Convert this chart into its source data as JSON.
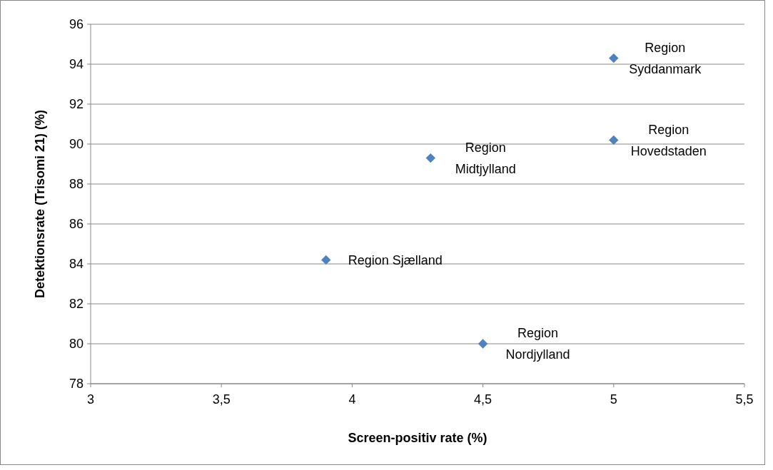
{
  "chart_data": {
    "type": "scatter",
    "xlabel": "Screen-positiv rate (%)",
    "ylabel": "Detektionsrate (Trisomi 21) (%)",
    "x": [
      3.9,
      4.3,
      4.5,
      5,
      5
    ],
    "values": [
      84.2,
      89.3,
      80,
      90.2,
      94.3
    ],
    "color": "#4f81bd",
    "marker": "diamond",
    "grid": "y",
    "xlim": [
      3,
      5.5
    ],
    "xticks": [
      3,
      {
        "value": 3.5,
        "label": "3,5"
      },
      4,
      {
        "value": 4.5,
        "label": "4,5"
      },
      5,
      {
        "value": 5.5,
        "label": "5,5"
      }
    ],
    "ylim": [
      78,
      96
    ],
    "yticks": [
      78,
      80,
      82,
      84,
      86,
      88,
      90,
      92,
      94,
      96
    ],
    "annotations": [
      {
        "text": "Region Sjælland",
        "x": 3.9,
        "y": 84.2
      },
      {
        "text": "Region\nMidtjylland",
        "x": 4.3,
        "y": 89.3
      },
      {
        "text": "Region\nNordjylland",
        "x": 4.5,
        "y": 80
      },
      {
        "text": "Region\nHovedstaden",
        "x": 5,
        "y": 90.2
      },
      {
        "text": "Region\nSyddanmark",
        "x": 5,
        "y": 94.3
      }
    ]
  }
}
